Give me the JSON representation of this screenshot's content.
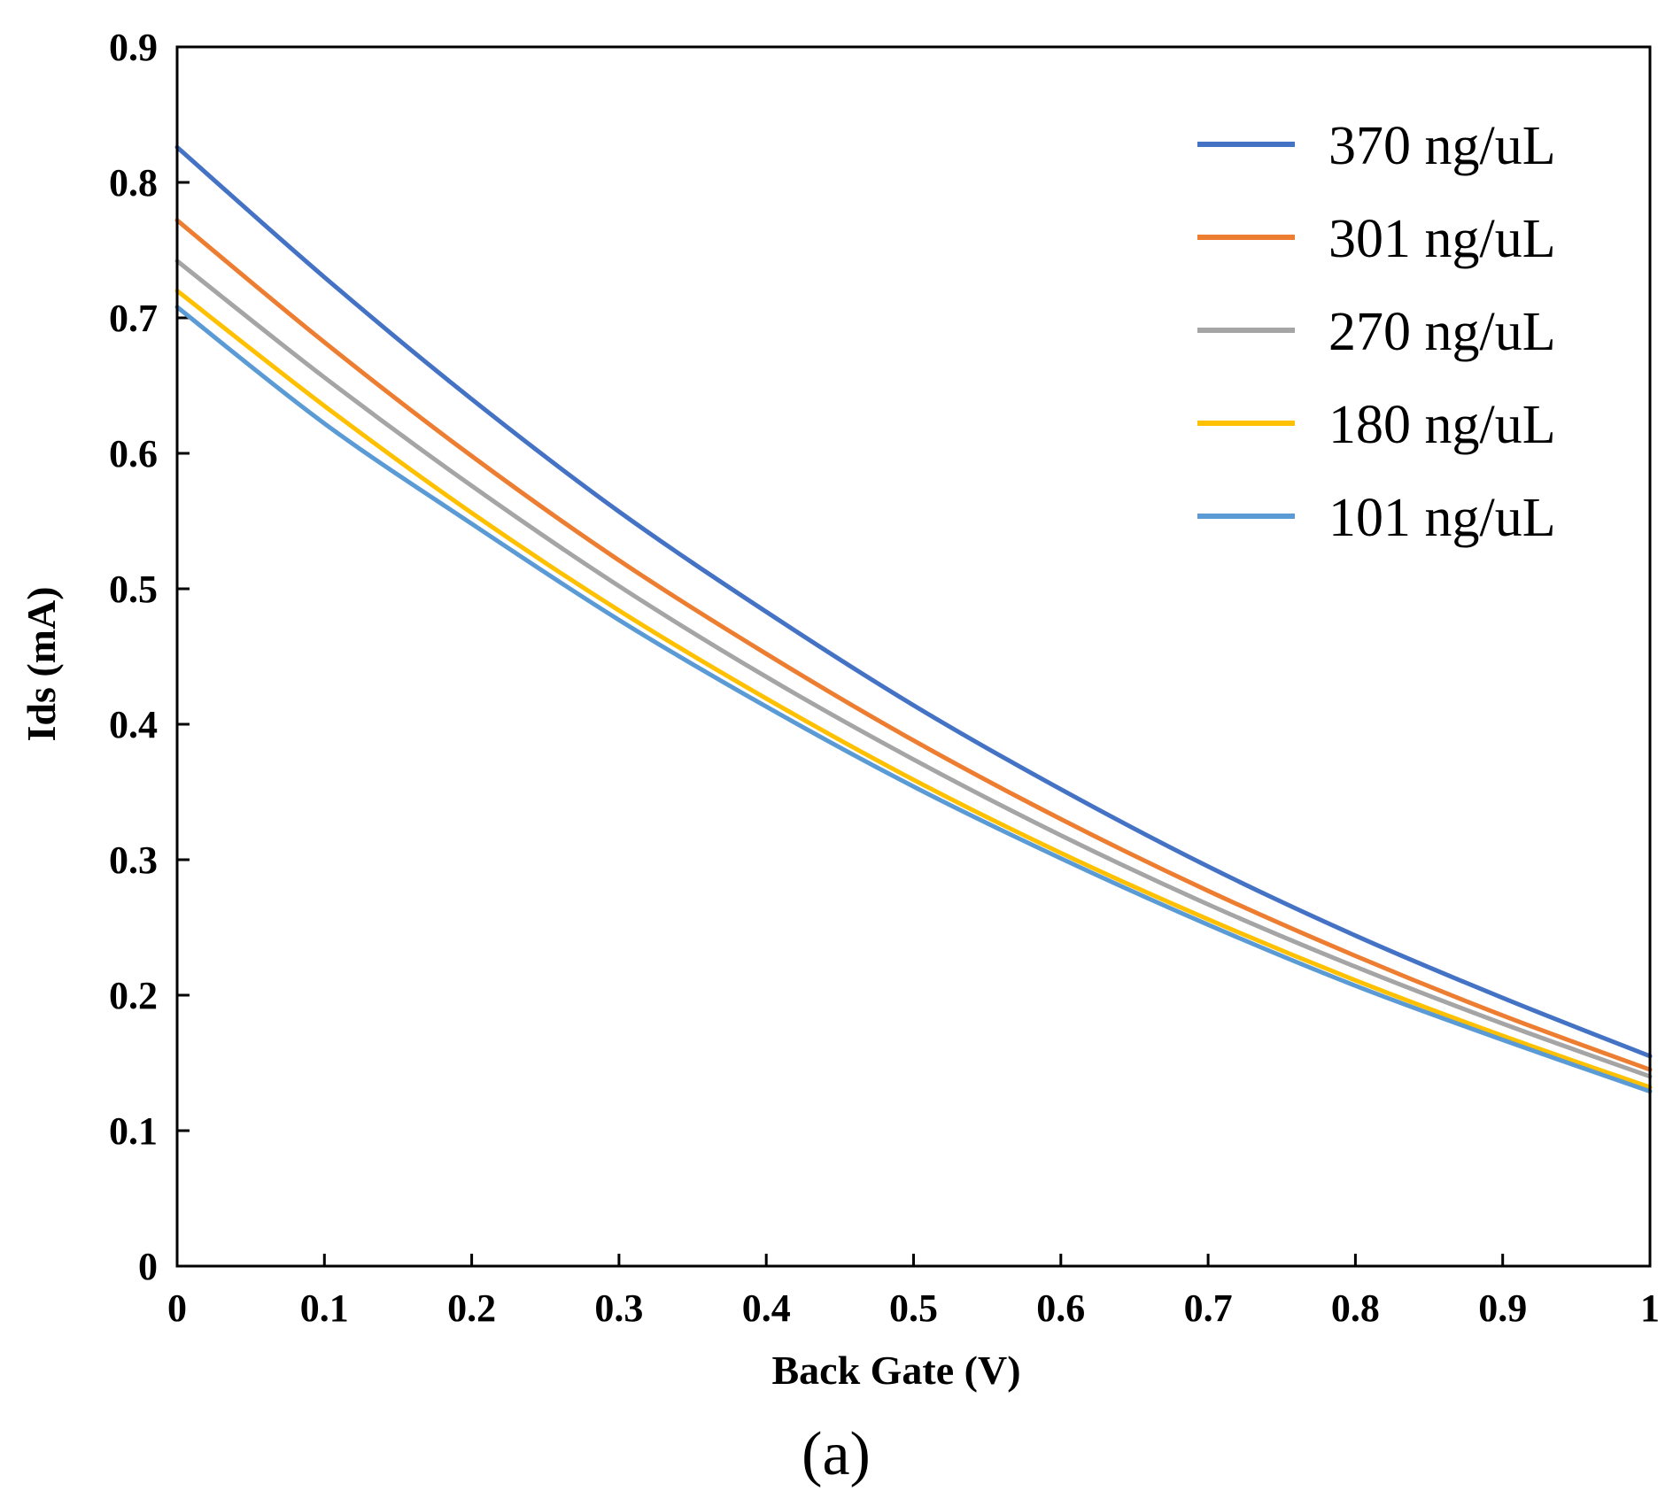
{
  "chart_data": {
    "type": "line",
    "title": "",
    "caption": "(a)",
    "xlabel": "Back Gate (V)",
    "ylabel": "Ids (mA)",
    "xlim": [
      0,
      1
    ],
    "ylim": [
      0,
      0.9
    ],
    "xticks": [
      0,
      0.1,
      0.2,
      0.3,
      0.4,
      0.5,
      0.6,
      0.7,
      0.8,
      0.9,
      1
    ],
    "xtick_labels": [
      "0",
      "0.1",
      "0.2",
      "0.3",
      "0.4",
      "0.5",
      "0.6",
      "0.7",
      "0.8",
      "0.9",
      "1"
    ],
    "yticks": [
      0,
      0.1,
      0.2,
      0.3,
      0.4,
      0.5,
      0.6,
      0.7,
      0.8,
      0.9
    ],
    "ytick_labels": [
      "0",
      "0.1",
      "0.2",
      "0.3",
      "0.4",
      "0.5",
      "0.6",
      "0.7",
      "0.8",
      "0.9"
    ],
    "grid": false,
    "legend_position": "top-right",
    "x": [
      0,
      0.1,
      0.2,
      0.3,
      0.4,
      0.5,
      0.6,
      0.7,
      0.8,
      0.9,
      1
    ],
    "series": [
      {
        "name": "370 ng/uL",
        "color": "#4472C4",
        "values": [
          0.826,
          0.73,
          0.64,
          0.557,
          0.483,
          0.414,
          0.352,
          0.295,
          0.244,
          0.198,
          0.155
        ]
      },
      {
        "name": "301 ng/uL",
        "color": "#ED7D31",
        "values": [
          0.772,
          0.682,
          0.598,
          0.521,
          0.452,
          0.388,
          0.33,
          0.277,
          0.229,
          0.185,
          0.145
        ]
      },
      {
        "name": "270 ng/uL",
        "color": "#A5A5A5",
        "values": [
          0.742,
          0.656,
          0.576,
          0.502,
          0.435,
          0.374,
          0.318,
          0.267,
          0.221,
          0.179,
          0.14
        ]
      },
      {
        "name": "180 ng/uL",
        "color": "#FFC000",
        "values": [
          0.72,
          0.635,
          0.556,
          0.484,
          0.419,
          0.359,
          0.305,
          0.256,
          0.211,
          0.17,
          0.132
        ]
      },
      {
        "name": "101 ng/uL",
        "color": "#5B9BD5",
        "values": [
          0.708,
          0.622,
          0.548,
          0.477,
          0.413,
          0.354,
          0.301,
          0.252,
          0.207,
          0.167,
          0.129
        ]
      }
    ]
  }
}
